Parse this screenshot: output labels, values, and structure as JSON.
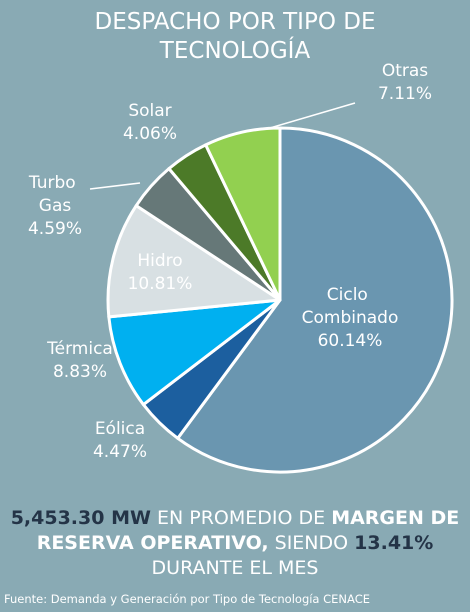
{
  "chart_data": {
    "type": "pie",
    "title": "DESPACHO POR TIPO DE TECNOLOGÍA",
    "categories": [
      "Ciclo Combinado",
      "Eólica",
      "Térmica",
      "Hidro",
      "Turbo Gas",
      "Solar",
      "Otras"
    ],
    "values": [
      60.14,
      4.47,
      8.83,
      10.81,
      4.59,
      4.06,
      7.11
    ],
    "value_labels": [
      "60.14%",
      "4.47%",
      "8.83%",
      "10.81%",
      "4.59%",
      "4.06%",
      "7.11%"
    ],
    "colors": [
      "#6a96b0",
      "#1c5f9f",
      "#00b0f0",
      "#d8e0e3",
      "#667878",
      "#4c7a28",
      "#92d050"
    ]
  },
  "summary": {
    "mw": "5,453.30 MW",
    "text1": "EN PROMEDIO DE",
    "bold1": "MARGEN DE RESERVA OPERATIVO,",
    "text2": "SIENDO",
    "pct": "13.41%",
    "text3": "DURANTE EL MES"
  },
  "source": "Fuente: Demanda y Generación por Tipo de Tecnología CENACE"
}
